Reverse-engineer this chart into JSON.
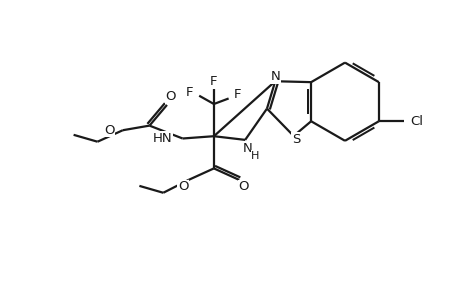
{
  "bg_color": "#ffffff",
  "line_color": "#1a1a1a",
  "line_width": 1.6,
  "font_size": 9.5,
  "fig_width": 4.6,
  "fig_height": 3.0,
  "dpi": 100,
  "xlim": [
    0,
    10
  ],
  "ylim": [
    0,
    6.5
  ]
}
